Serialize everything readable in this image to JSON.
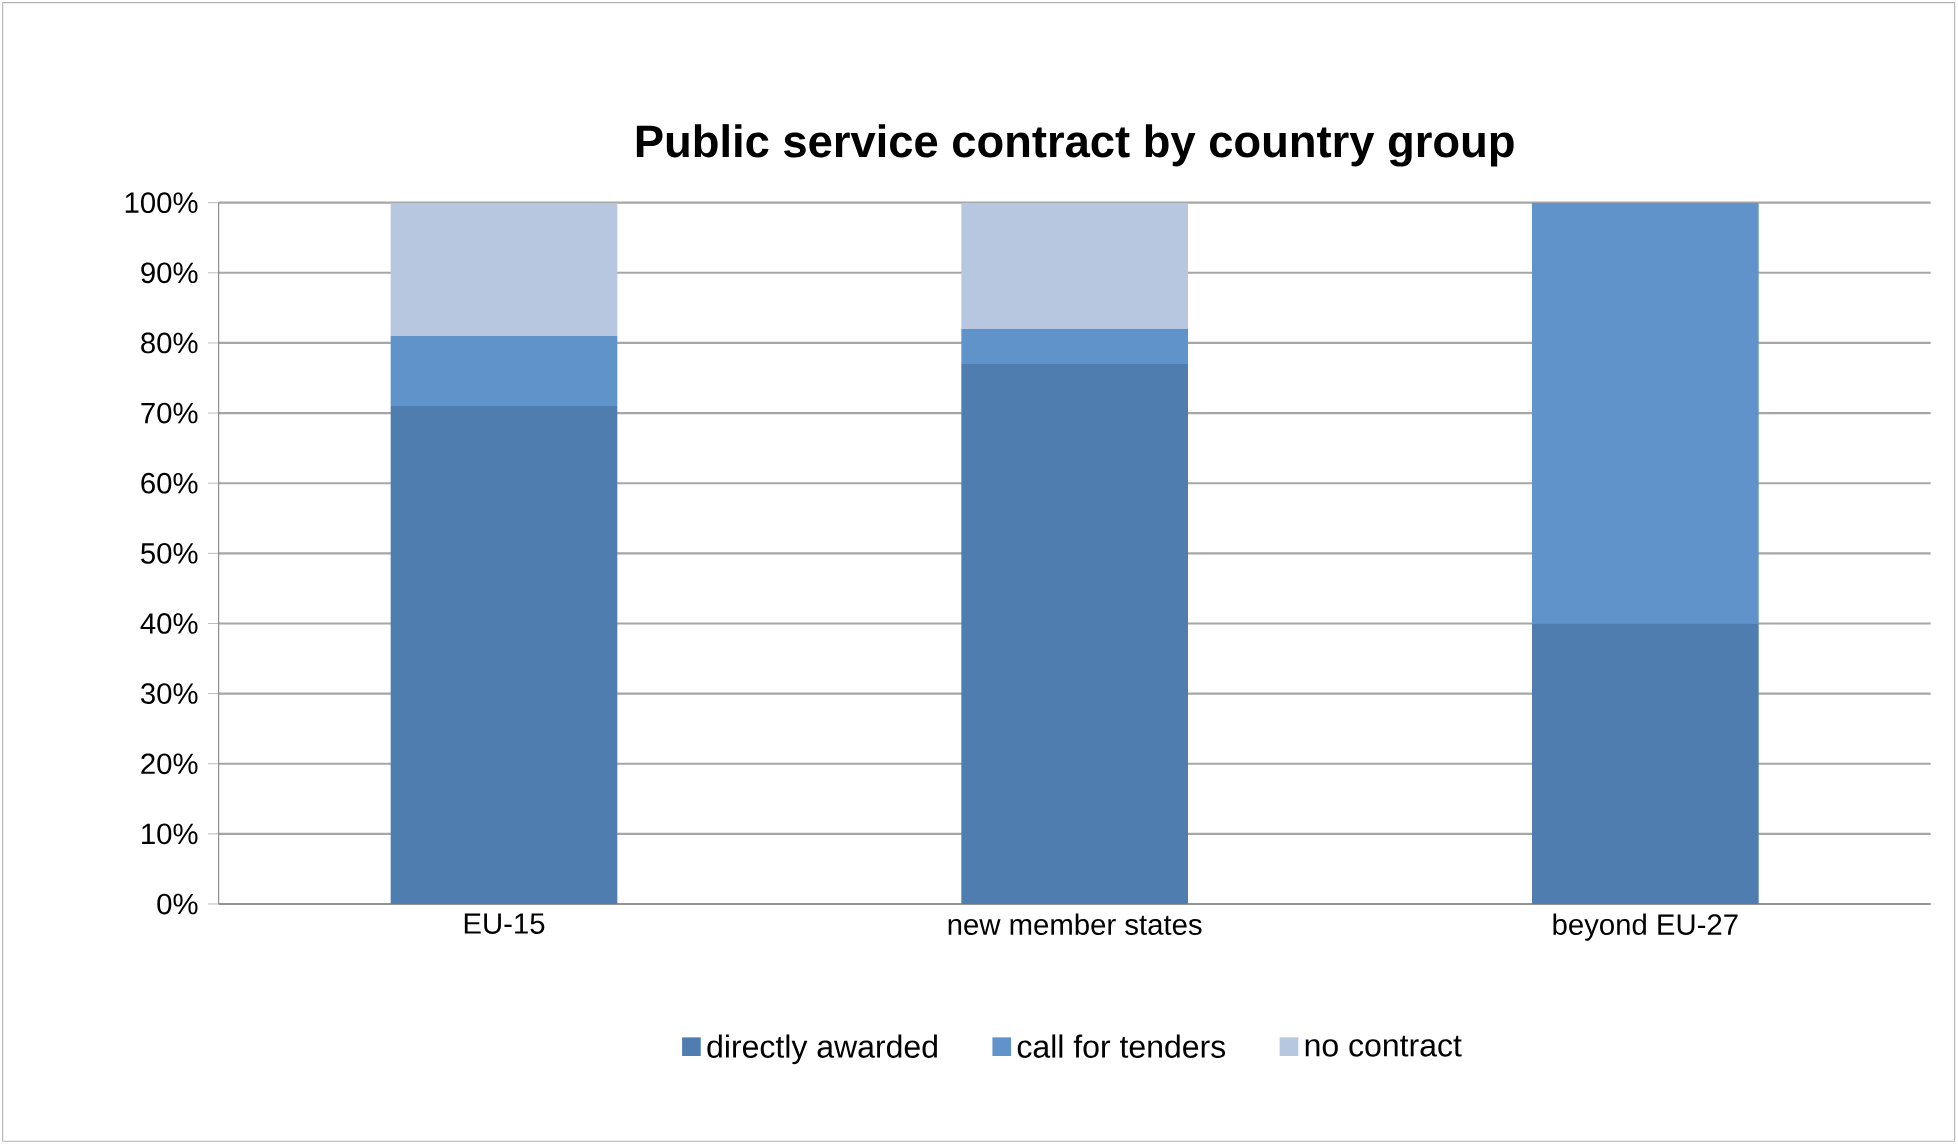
{
  "chart_data": {
    "type": "bar",
    "title": "Public service contract by country group",
    "categories": [
      "EU-15",
      "new member states",
      "beyond EU-27"
    ],
    "stacked": true,
    "series": [
      {
        "name": "directly awarded",
        "color": "#4f7db0",
        "values": [
          71,
          77,
          40
        ]
      },
      {
        "name": "call for tenders",
        "color": "#5f93c9",
        "values": [
          10,
          5,
          60
        ]
      },
      {
        "name": "no contract",
        "color": "#b7c7df",
        "values": [
          19,
          18,
          0
        ]
      }
    ],
    "ylim": [
      0,
      100
    ],
    "yticks": [
      {
        "value": 0,
        "label": "0%"
      },
      {
        "value": 10,
        "label": "10%"
      },
      {
        "value": 20,
        "label": "20%"
      },
      {
        "value": 30,
        "label": "30%"
      },
      {
        "value": 40,
        "label": "40%"
      },
      {
        "value": 50,
        "label": "50%"
      },
      {
        "value": 60,
        "label": "60%"
      },
      {
        "value": 70,
        "label": "70%"
      },
      {
        "value": 80,
        "label": "80%"
      },
      {
        "value": 90,
        "label": "90%"
      },
      {
        "value": 100,
        "label": "100%"
      }
    ],
    "grid": "y",
    "legend": "bottom"
  }
}
